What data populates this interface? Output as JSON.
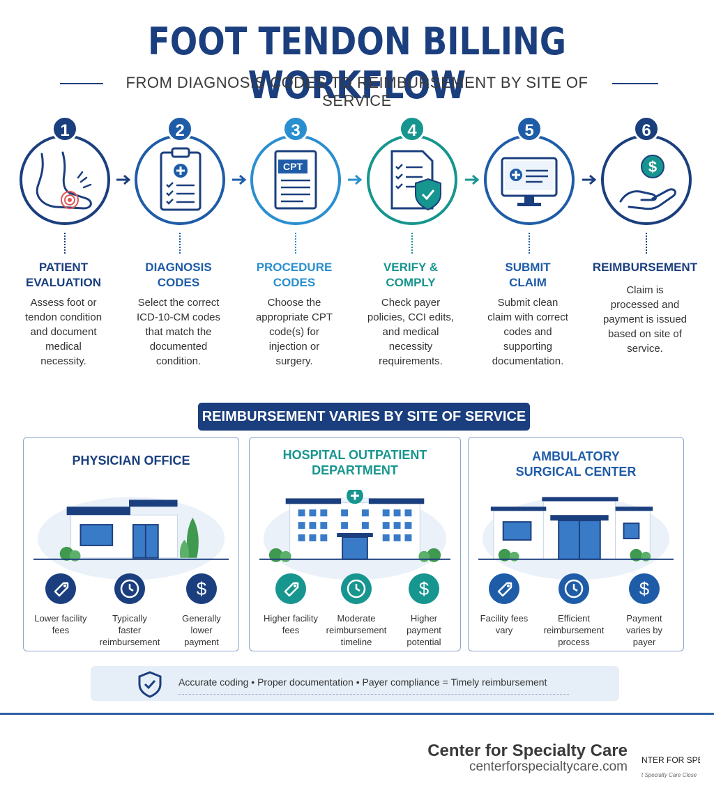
{
  "header": {
    "title": "FOOT TENDON BILLING WORKFLOW",
    "subtitle": "FROM DIAGNOSIS CODES TO REIMBURSEMENT BY SITE OF SERVICE"
  },
  "steps": [
    {
      "number": "1",
      "title_line1": "PATIENT",
      "title_line2": "EVALUATION",
      "desc": [
        "Assess foot or",
        "tendon condition",
        "and document",
        "medical",
        "necessity."
      ],
      "icon": "foot-pain-icon",
      "color": "#1b3f7e"
    },
    {
      "number": "2",
      "title_line1": "DIAGNOSIS",
      "title_line2": "CODES",
      "desc": [
        "Select the correct",
        "ICD-10-CM codes",
        "that match the",
        "documented",
        "condition."
      ],
      "icon": "clipboard-checklist-icon",
      "color": "#1f5ca8"
    },
    {
      "number": "3",
      "title_line1": "PROCEDURE",
      "title_line2": "CODES",
      "desc": [
        "Choose the",
        "appropriate CPT",
        "code(s) for",
        "injection or",
        "surgery."
      ],
      "icon": "cpt-document-icon",
      "color": "#2a8fcf",
      "icon_label": "CPT"
    },
    {
      "number": "4",
      "title_line1": "VERIFY &",
      "title_line2": "COMPLY",
      "desc": [
        "Check payer",
        "policies, CCI edits,",
        "and medical",
        "necessity",
        "requirements."
      ],
      "icon": "checklist-shield-icon",
      "color": "#17958f"
    },
    {
      "number": "5",
      "title_line1": "SUBMIT",
      "title_line2": "CLAIM",
      "desc": [
        "Submit clean",
        "claim with correct",
        "codes and",
        "supporting",
        "documentation."
      ],
      "icon": "computer-monitor-icon",
      "color": "#1f5ca8"
    },
    {
      "number": "6",
      "title_line1": "REIMBURSEMENT",
      "title_line2": "",
      "desc": [
        "Claim is",
        "processed and",
        "payment is issued",
        "based on site of",
        "service."
      ],
      "icon": "hand-dollar-icon",
      "color": "#1b3f7e"
    }
  ],
  "banner": "REIMBURSEMENT VARIES BY SITE OF SERVICE",
  "sites": [
    {
      "title_line1": "PHYSICIAN OFFICE",
      "title_line2": "",
      "color": "#1b3f7e",
      "features": [
        {
          "icon": "tag-icon",
          "label": [
            "Lower facility",
            "fees"
          ]
        },
        {
          "icon": "clock-icon",
          "label": [
            "Typically",
            "faster",
            "reimbursement"
          ]
        },
        {
          "icon": "dollar-icon",
          "label": [
            "Generally",
            "lower",
            "payment"
          ]
        }
      ]
    },
    {
      "title_line1": "HOSPITAL OUTPATIENT",
      "title_line2": "DEPARTMENT",
      "color": "#17958f",
      "features": [
        {
          "icon": "tag-icon",
          "label": [
            "Higher facility",
            "fees"
          ]
        },
        {
          "icon": "clock-icon",
          "label": [
            "Moderate",
            "reimbursement",
            "timeline"
          ]
        },
        {
          "icon": "dollar-icon",
          "label": [
            "Higher",
            "payment",
            "potential"
          ]
        }
      ]
    },
    {
      "title_line1": "AMBULATORY",
      "title_line2": "SURGICAL CENTER",
      "color": "#1f5ca8",
      "features": [
        {
          "icon": "tag-icon",
          "label": [
            "Facility fees",
            "vary"
          ]
        },
        {
          "icon": "clock-icon",
          "label": [
            "Efficient",
            "reimbursement",
            "process"
          ]
        },
        {
          "icon": "dollar-icon",
          "label": [
            "Payment",
            "varies by",
            "payer"
          ]
        }
      ]
    }
  ],
  "summary": "Accurate coding  •  Proper documentation  •  Payer compliance  =  Timely reimbursement",
  "footer": {
    "org_name": "Center for Specialty Care",
    "org_url": "centerforspecialtycare.com",
    "small_text": "NTER FOR SPEC",
    "tiny_text": "t Specialty Care Close"
  },
  "colors": {
    "navy": "#1b3f7e",
    "blue": "#1f5ca8",
    "sky": "#2a8fcf",
    "teal": "#17958f"
  }
}
